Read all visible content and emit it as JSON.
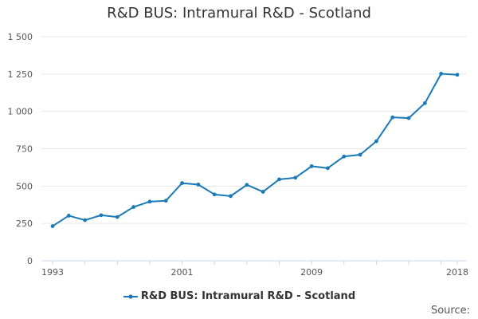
{
  "chart_data": {
    "type": "line",
    "title": "R&D BUS: Intramural R&D - Scotland",
    "xlabel": "",
    "ylabel": "",
    "x": [
      1993,
      1994,
      1995,
      1996,
      1997,
      1998,
      1999,
      2000,
      2001,
      2002,
      2003,
      2004,
      2005,
      2006,
      2007,
      2008,
      2009,
      2010,
      2011,
      2012,
      2013,
      2014,
      2015,
      2016,
      2017,
      2018
    ],
    "series": [
      {
        "name": "R&D BUS: Intramural R&D - Scotland",
        "color": "#1a7ab7",
        "values": [
          232,
          302,
          272,
          305,
          293,
          360,
          396,
          402,
          520,
          510,
          444,
          433,
          508,
          462,
          545,
          556,
          633,
          620,
          698,
          710,
          800,
          960,
          955,
          1055,
          1252,
          1245
        ]
      }
    ],
    "xlim": [
      1993,
      2018
    ],
    "ylim": [
      0,
      1500
    ],
    "x_tick_labels": [
      "1993",
      "2001",
      "2009",
      "2018"
    ],
    "y_tick_labels": [
      "0",
      "250",
      "500",
      "750",
      "1 000",
      "1 250",
      "1 500"
    ],
    "grid": true,
    "legend_position": "bottom"
  },
  "footer": {
    "source_label": "Source:"
  }
}
